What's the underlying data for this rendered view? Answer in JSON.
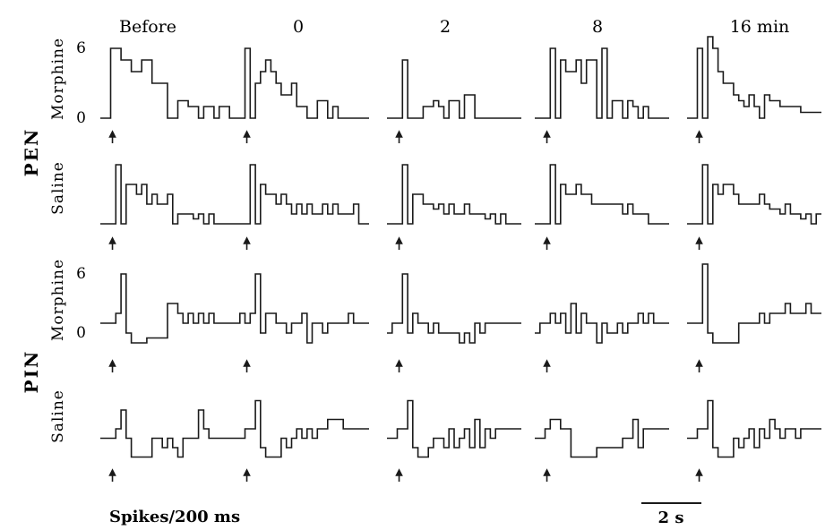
{
  "chart_data": {
    "type": "line",
    "columns": [
      "Before",
      "0",
      "2",
      "8",
      "16 min"
    ],
    "groups": [
      {
        "label": "PEN",
        "rows": [
          "Morphine",
          "Saline"
        ]
      },
      {
        "label": "PIN",
        "rows": [
          "Morphine",
          "Saline"
        ]
      }
    ],
    "y_ticks": [
      "0",
      "6"
    ],
    "ylabel": "Spikes/200 ms",
    "scale_bar": "2 s",
    "bin_ms": 200,
    "series": [
      {
        "group": "PEN",
        "row": "Morphine",
        "traces": [
          [
            0,
            0,
            6,
            6,
            5,
            5,
            4,
            4,
            5,
            5,
            3,
            3,
            3,
            0,
            0,
            1.5,
            1.5,
            1,
            1,
            0,
            1,
            1,
            0,
            1,
            1,
            0
          ],
          [
            0,
            0,
            6,
            0,
            3,
            4,
            5,
            4,
            3,
            2,
            2,
            3,
            1,
            1,
            0,
            0,
            1.5,
            1.5,
            0,
            1,
            0,
            0,
            0,
            0,
            0,
            0
          ],
          [
            0,
            0,
            0,
            5,
            0,
            0,
            0,
            1,
            1,
            1.5,
            1,
            0,
            1.5,
            1.5,
            0,
            2,
            2,
            0,
            0,
            0,
            0,
            0,
            0,
            0,
            0,
            0
          ],
          [
            0,
            0,
            0,
            6,
            0,
            5,
            4,
            4,
            5,
            3,
            5,
            5,
            0,
            6,
            0,
            1.5,
            1.5,
            0,
            1.5,
            1,
            0,
            1,
            0,
            0,
            0,
            0
          ],
          [
            0,
            0,
            6,
            0,
            7,
            6,
            4,
            3,
            3,
            2,
            1.5,
            1,
            2,
            1,
            0,
            2,
            1.5,
            1.5,
            1,
            1,
            1,
            1,
            0.5,
            0.5,
            0.5,
            0.5
          ]
        ]
      },
      {
        "group": "PEN",
        "row": "Saline",
        "traces": [
          [
            0,
            0,
            0,
            6,
            0,
            4,
            4,
            3,
            4,
            2,
            3,
            2,
            2,
            3,
            0,
            1,
            1,
            1,
            0.5,
            1,
            0,
            1,
            0,
            0,
            0,
            0
          ],
          [
            0,
            0,
            0,
            6,
            0,
            4,
            3,
            3,
            2,
            3,
            2,
            1,
            2,
            1,
            2,
            1,
            1,
            2,
            1,
            2,
            1,
            1,
            1,
            2,
            0,
            0
          ],
          [
            0,
            0,
            0,
            6,
            0,
            3,
            3,
            2,
            2,
            1.5,
            2,
            1,
            2,
            1,
            1,
            2,
            1,
            1,
            1,
            0.5,
            1,
            0,
            1,
            0,
            0,
            0
          ],
          [
            0,
            0,
            0,
            6,
            0,
            4,
            3,
            3,
            4,
            3,
            3,
            2,
            2,
            2,
            2,
            2,
            2,
            1,
            2,
            1,
            1,
            1,
            0,
            0,
            0,
            0
          ],
          [
            0,
            0,
            0,
            6,
            0,
            4,
            3,
            4,
            4,
            3,
            2,
            2,
            2,
            2,
            3,
            2,
            1.5,
            1.5,
            1,
            2,
            1,
            1,
            0.5,
            1,
            0,
            1
          ]
        ]
      },
      {
        "group": "PIN",
        "row": "Morphine",
        "traces": [
          [
            1,
            1,
            1,
            2,
            6,
            0,
            -1,
            -1,
            -1,
            -0.5,
            -0.5,
            -0.5,
            -0.5,
            3,
            3,
            2,
            1,
            2,
            1,
            2,
            1,
            2,
            1,
            1,
            1,
            1
          ],
          [
            1,
            2,
            1,
            2,
            6,
            0,
            2,
            2,
            1,
            1,
            0,
            1,
            1,
            2,
            -1,
            1,
            1,
            0,
            1,
            1,
            1,
            1,
            2,
            1,
            1,
            1
          ],
          [
            0,
            1,
            1,
            6,
            0,
            2,
            1,
            1,
            0,
            1,
            0,
            0,
            0,
            0,
            -1,
            0,
            -1,
            1,
            0,
            1,
            1,
            1,
            1,
            1,
            1,
            1
          ],
          [
            0,
            1,
            1,
            2,
            1,
            2,
            0,
            3,
            0,
            2,
            1,
            1,
            -1,
            1,
            0,
            0,
            1,
            0,
            1,
            1,
            2,
            1,
            2,
            1,
            1,
            1
          ],
          [
            1,
            1,
            1,
            7,
            0,
            -1,
            -1,
            -1,
            -1,
            -1,
            1,
            1,
            1,
            1,
            2,
            1,
            2,
            2,
            2,
            3,
            2,
            2,
            2,
            3,
            2,
            2
          ]
        ]
      },
      {
        "group": "PIN",
        "row": "Saline",
        "traces": [
          [
            1,
            1,
            1,
            2,
            4,
            1,
            -1,
            -1,
            -1,
            -1,
            1,
            1,
            0,
            1,
            0,
            -1,
            1,
            1,
            1,
            4,
            2,
            1,
            1,
            1,
            1,
            1
          ],
          [
            1,
            1,
            2,
            2,
            5,
            0,
            -1,
            -1,
            -1,
            1,
            0,
            1,
            2,
            1,
            2,
            1,
            2,
            2,
            3,
            3,
            3,
            2,
            2,
            2,
            2,
            2
          ],
          [
            1,
            1,
            2,
            2,
            5,
            0,
            -1,
            -1,
            0,
            1,
            1,
            0,
            2,
            0,
            1,
            2,
            0,
            3,
            0,
            2,
            1,
            2,
            2,
            2,
            2,
            2
          ],
          [
            1,
            1,
            2,
            3,
            3,
            2,
            2,
            -1,
            -1,
            -1,
            -1,
            -1,
            0,
            0,
            0,
            0,
            0,
            1,
            1,
            3,
            0,
            2,
            2,
            2,
            2,
            2
          ],
          [
            1,
            1,
            2,
            2,
            5,
            0,
            -1,
            -1,
            -1,
            1,
            0,
            1,
            2,
            0,
            2,
            1,
            3,
            2,
            1,
            2,
            2,
            1,
            2,
            2,
            2,
            2
          ]
        ]
      }
    ]
  }
}
